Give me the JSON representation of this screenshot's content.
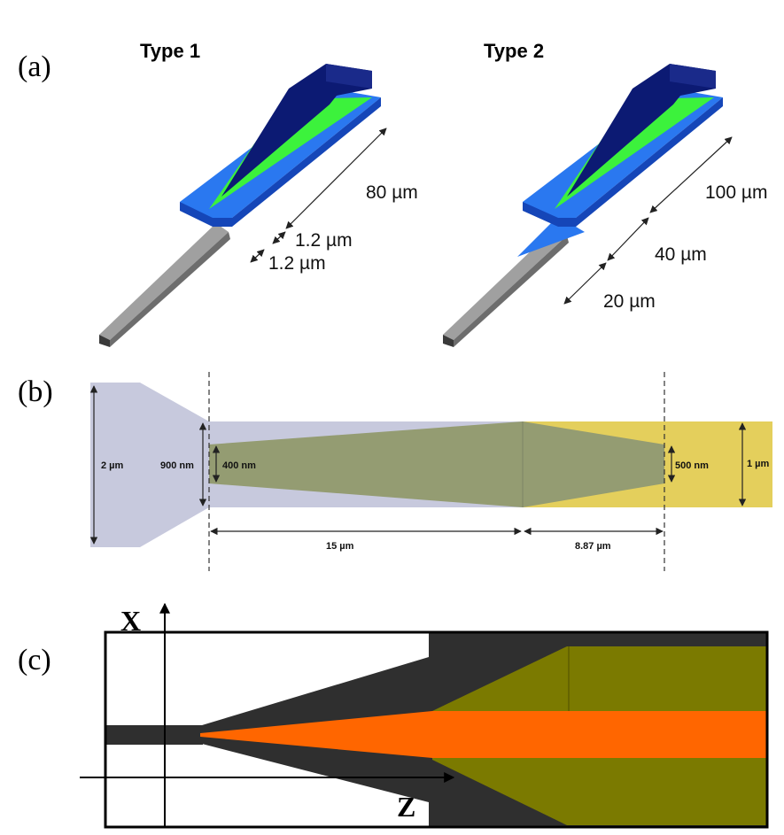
{
  "panels": {
    "a": {
      "label": "(a)",
      "type1": {
        "title": "Type 1",
        "length": "80 µm",
        "width_1": "1.2 µm",
        "width_2": "1.2 µm"
      },
      "type2": {
        "title": "Type 2",
        "length_1": "100 µm",
        "length_2": "40 µm",
        "length_3": "20 µm"
      }
    },
    "b": {
      "label": "(b)",
      "dim_height_left": "2 µm",
      "dim_waveguide": "900 nm",
      "dim_tip_left": "400 nm",
      "dim_tip_right": "500 nm",
      "dim_height_right": "1 µm",
      "dim_length_1": "15 µm",
      "dim_length_2": "8.87 µm"
    },
    "c": {
      "label": "(c)",
      "axis_x": "X",
      "axis_z": "Z"
    }
  },
  "colors": {
    "substrate_blue": "#1f6ee8",
    "taper_green": "#3cf23c",
    "cap_navy": "#0c1a73",
    "fiber_gray": "#9a9a9a",
    "lavender": "#c7c9dd",
    "olive_overlap": "#949c72",
    "yellow": "#e4cf5c",
    "dark_gray": "#2f2f2f",
    "olive_dark": "#7b7a00",
    "orange": "#ff6600"
  }
}
